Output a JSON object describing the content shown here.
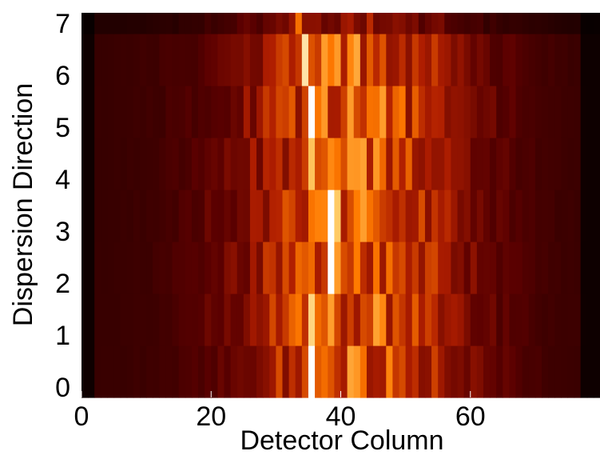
{
  "chart_data": {
    "type": "heatmap",
    "title": "",
    "xlabel": "Detector Column",
    "ylabel": "Dispersion Direction",
    "xlim": [
      0,
      80
    ],
    "ylim": [
      -0.2,
      7.2
    ],
    "x_ticks": [
      0,
      20,
      40,
      60
    ],
    "y_ticks": [
      0,
      1,
      2,
      3,
      4,
      5,
      6,
      7
    ],
    "n_columns": 80,
    "row_bands": [
      {
        "y0": -0.2,
        "y1": 0.8
      },
      {
        "y0": 0.8,
        "y1": 1.8
      },
      {
        "y0": 1.8,
        "y1": 2.8
      },
      {
        "y0": 2.8,
        "y1": 3.8
      },
      {
        "y0": 3.8,
        "y1": 4.8
      },
      {
        "y0": 4.8,
        "y1": 5.8
      },
      {
        "y0": 5.8,
        "y1": 6.8
      },
      {
        "y0": 6.8,
        "y1": 7.2
      }
    ],
    "peak_columns": [
      35,
      35,
      38,
      38,
      35,
      35,
      34,
      33
    ],
    "colormap": [
      "#000000",
      "#5a0000",
      "#b01e00",
      "#ff7a00",
      "#ffcc66",
      "#ffffff"
    ],
    "background": "#ffffff"
  }
}
